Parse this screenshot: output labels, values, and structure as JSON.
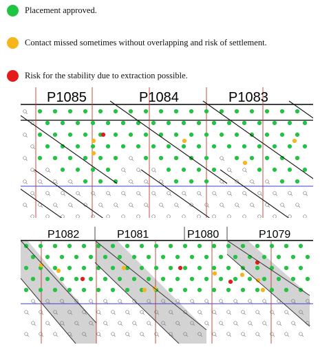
{
  "legend": [
    {
      "label": "Placement approved.",
      "color": "#21c442"
    },
    {
      "label": "Contact missed sometimes without overlapping and risk of settlement.",
      "color": "#f5b51d"
    },
    {
      "label": "Risk for the stability due to extraction possible.",
      "color": "#e41b1b"
    }
  ],
  "top_panel": {
    "labels": [
      "P1085",
      "P1084",
      "P1083"
    ]
  },
  "bottom_panel": {
    "labels": [
      "P1082",
      "P1081",
      "P1080",
      "P1079"
    ]
  },
  "colors": {
    "approved": "#21c442",
    "contact_missed": "#f5b51d",
    "risk": "#e41b1b",
    "grid_red": "#c0392b",
    "grid_blue": "#3b3bd6",
    "shade": "#d3d3d3"
  }
}
